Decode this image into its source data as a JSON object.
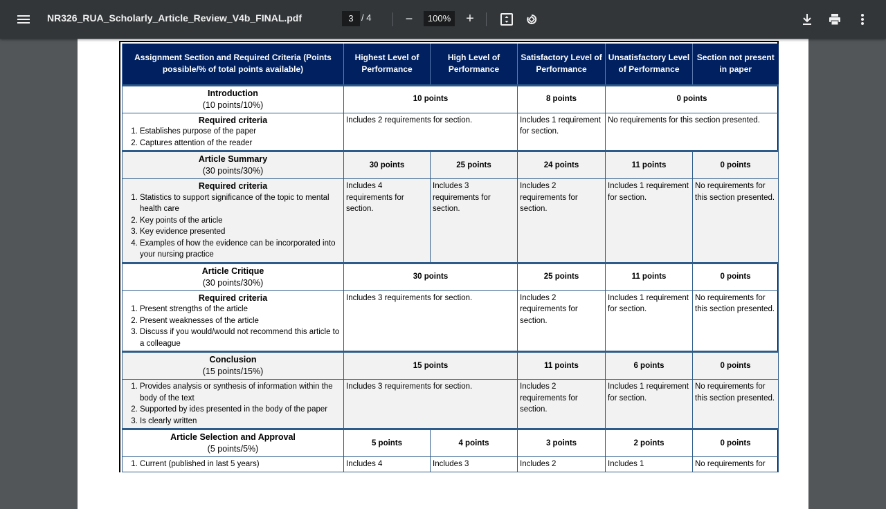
{
  "toolbar": {
    "title": "NR326_RUA_Scholarly_Article_Review_V4b_FINAL.pdf",
    "current_page": "3",
    "page_separator": "/ 4",
    "zoom": "100%",
    "zoom_out": "−",
    "zoom_in": "+"
  },
  "table": {
    "headers": [
      "Assignment Section and Required Criteria (Points possible/% of total points available)",
      "Highest Level of Performance",
      "High Level of Performance",
      "Satisfactory Level of Performance",
      "Unsatisfactory Level of Performance",
      "Section not present in paper"
    ],
    "sections": [
      {
        "name": "Introduction",
        "points_possible": "(10 points/10%)",
        "gray": false,
        "points": [
          {
            "label": "10 points",
            "span": 2
          },
          {
            "label": "8 points",
            "span": 1
          },
          {
            "label": "0 points",
            "span": 2
          }
        ],
        "criteria_heading": "Required criteria",
        "criteria": [
          "Establishes purpose of the paper",
          "Captures attention of the reader"
        ],
        "descriptions": [
          {
            "text": "Includes 2 requirements for section.",
            "span": 2
          },
          {
            "text": "Includes 1 requirement for section.",
            "span": 1
          },
          {
            "text": "No requirements for this section presented.",
            "span": 2
          }
        ]
      },
      {
        "name": "Article Summary",
        "points_possible": "(30 points/30%)",
        "gray": true,
        "points": [
          {
            "label": "30 points",
            "span": 1
          },
          {
            "label": "25  points",
            "span": 1
          },
          {
            "label": "24 points",
            "span": 1
          },
          {
            "label": "11 points",
            "span": 1
          },
          {
            "label": "0 points",
            "span": 1
          }
        ],
        "criteria_heading": "Required criteria",
        "criteria": [
          "Statistics to support significance of the topic to mental health care",
          "Key points of the article",
          "Key evidence presented",
          "Examples of how the evidence can be incorporated into your nursing practice"
        ],
        "descriptions": [
          {
            "text": "Includes 4 requirements for section.",
            "span": 1
          },
          {
            "text": "Includes 3 requirements for section.",
            "span": 1
          },
          {
            "text": "Includes 2 requirements for section.",
            "span": 1
          },
          {
            "text": "Includes 1 requirement for section.",
            "span": 1
          },
          {
            "text": "No requirements for this section presented.",
            "span": 1
          }
        ]
      },
      {
        "name": "Article Critique",
        "points_possible": "(30 points/30%)",
        "gray": false,
        "points": [
          {
            "label": "30 points",
            "span": 2
          },
          {
            "label": "25 points",
            "span": 1
          },
          {
            "label": "11 points",
            "span": 1
          },
          {
            "label": "0 points",
            "span": 1
          }
        ],
        "criteria_heading": "Required criteria",
        "criteria": [
          "Present strengths of the article",
          "Present weaknesses of the article",
          "Discuss if you would/would not recommend this article to a colleague"
        ],
        "descriptions": [
          {
            "text": "Includes 3 requirements for section.",
            "span": 2
          },
          {
            "text": "Includes 2 requirements for section.",
            "span": 1
          },
          {
            "text": "Includes 1 requirement for section.",
            "span": 1
          },
          {
            "text": "No requirements for this section presented.",
            "span": 1
          }
        ]
      },
      {
        "name": "Conclusion",
        "points_possible": "(15 points/15%)",
        "gray": true,
        "points": [
          {
            "label": "15 points",
            "span": 2
          },
          {
            "label": "11 points",
            "span": 1
          },
          {
            "label": "6 points",
            "span": 1
          },
          {
            "label": "0 points",
            "span": 1
          }
        ],
        "criteria_heading": "",
        "criteria": [
          "Provides analysis or synthesis of information within the body of the text",
          "Supported by ides presented in the body of the paper",
          "Is clearly written"
        ],
        "descriptions": [
          {
            "text": "Includes 3 requirements for section.",
            "span": 2
          },
          {
            "text": "Includes 2 requirements for section.",
            "span": 1
          },
          {
            "text": "Includes 1 requirement for section.",
            "span": 1
          },
          {
            "text": "No requirements for this section presented.",
            "span": 1
          }
        ]
      },
      {
        "name": "Article Selection and Approval",
        "points_possible": "(5 points/5%)",
        "gray": false,
        "points": [
          {
            "label": "5 points",
            "span": 1
          },
          {
            "label": "4 points",
            "span": 1
          },
          {
            "label": "3 points",
            "span": 1
          },
          {
            "label": "2 points",
            "span": 1
          },
          {
            "label": "0 points",
            "span": 1
          }
        ],
        "criteria_heading": "",
        "criteria": [
          "Current (published in last 5 years)"
        ],
        "descriptions": [
          {
            "text": "Includes 4",
            "span": 1
          },
          {
            "text": "Includes 3",
            "span": 1
          },
          {
            "text": "Includes 2",
            "span": 1
          },
          {
            "text": "Includes 1",
            "span": 1
          },
          {
            "text": "No requirements for",
            "span": 1
          }
        ]
      }
    ]
  }
}
